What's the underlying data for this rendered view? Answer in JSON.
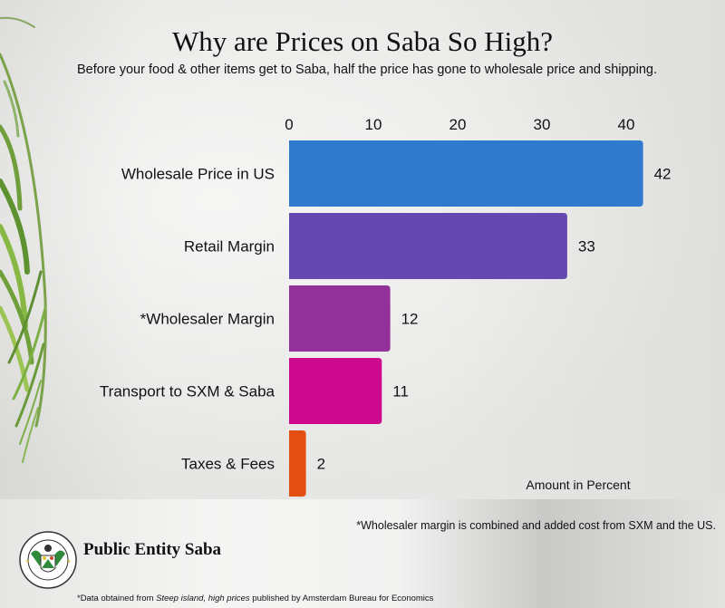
{
  "chart_data": {
    "type": "bar",
    "orientation": "horizontal",
    "title": "Why are Prices on Saba So High?",
    "subtitle": "Before your food & other items get to Saba, half the price has gone to wholesale price and shipping.",
    "categories": [
      "Wholesale Price in US",
      "Retail Margin",
      "*Wholesaler Margin",
      "Transport to SXM & Saba",
      "Taxes & Fees"
    ],
    "values": [
      42,
      33,
      12,
      11,
      2
    ],
    "colors": [
      "#2f7acd",
      "#6549b0",
      "#913199",
      "#cd0a8e",
      "#e34e12"
    ],
    "xlabel": "Amount in Percent",
    "ylabel": "",
    "xlim": [
      0,
      45
    ],
    "x_ticks": [
      0,
      10,
      20,
      30,
      40
    ],
    "x_axis_position": "top",
    "grid": false,
    "data_labels": true
  },
  "footnote": "*Wholesaler margin is combined and added cost from SXM and the US.",
  "brand": {
    "name": "Public Entity Saba",
    "logo_icon": "public-entity-saba-seal-icon",
    "logo_text_top": "PUBLIC ENTITY SABA",
    "logo_text_bottom": "REMIS VELISQUE"
  },
  "source": {
    "prefix": "*Data obtained from ",
    "title": "Steep island, high prices",
    "suffix": "  published by Amsterdam Bureau for Economics"
  }
}
